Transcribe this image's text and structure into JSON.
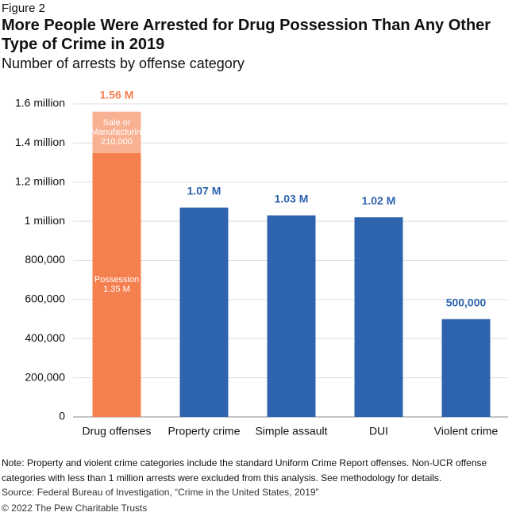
{
  "figure_label": "Figure 2",
  "chart_data": {
    "type": "stacked-bar",
    "title": "More People Were Arrested for Drug Possession Than Any Other Type of Crime in 2019",
    "subtitle": "Number of arrests by offense category",
    "categories": [
      "Drug offenses",
      "Property crime",
      "Simple assault",
      "DUI",
      "Violent crime"
    ],
    "series": [
      {
        "name": "Possession",
        "color": "#f47f4f",
        "values": [
          1350000,
          null,
          null,
          null,
          null
        ],
        "value_labels": [
          "1.35 M",
          null,
          null,
          null,
          null
        ]
      },
      {
        "name": "Sale or Manufacturing",
        "color": "#f8b192",
        "values": [
          210000,
          null,
          null,
          null,
          null
        ],
        "value_labels": [
          "210,000",
          null,
          null,
          null,
          null
        ]
      },
      {
        "color": "#2e64ad",
        "values": [
          null,
          1070000,
          1030000,
          1020000,
          500000
        ]
      }
    ],
    "totals": [
      1560000,
      1070000,
      1030000,
      1020000,
      500000
    ],
    "total_labels": [
      "1.56 M",
      "1.07 M",
      "1.03 M",
      "1.02 M",
      "500,000"
    ],
    "total_label_colors": [
      "#f47f4f",
      "#2e64ad",
      "#2e64ad",
      "#2e64ad",
      "#2e64ad"
    ],
    "ylim": [
      0,
      1600000
    ],
    "yticks": [
      0,
      {
        "value": 200000,
        "label": "200,000"
      },
      {
        "value": 400000,
        "label": "400,000"
      },
      {
        "value": 600000,
        "label": "600,000"
      },
      {
        "value": 800000,
        "label": "800,000"
      },
      {
        "value": 1000000,
        "label": "1 million"
      },
      {
        "value": 1200000,
        "label": "1.2 million"
      },
      {
        "value": 1400000,
        "label": "1.4 million"
      },
      {
        "value": 1600000,
        "label": "1.6 million"
      }
    ],
    "grid": true
  },
  "footer": {
    "note": "Note: Property and violent crime categories include the standard Uniform Crime Report offenses. Non-UCR offense categories with less than 1 million arrests were excluded from this analysis. See methodology for details.",
    "source": "Source: Federal Bureau of Investigation, “Crime in the United States, 2019”",
    "copyright": "© 2022 The Pew Charitable Trusts"
  }
}
